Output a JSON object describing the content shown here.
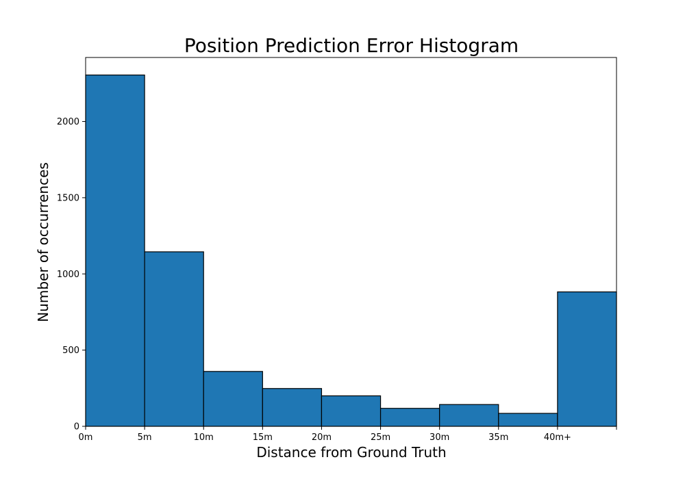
{
  "chart_data": {
    "type": "bar",
    "title": "Position Prediction Error Histogram",
    "xlabel": "Distance from Ground Truth",
    "ylabel": "Number of occurrences",
    "bin_edges": [
      0,
      5,
      10,
      15,
      20,
      25,
      30,
      35,
      40,
      45
    ],
    "x_tick_values": [
      0,
      5,
      10,
      15,
      20,
      25,
      30,
      35,
      40,
      45
    ],
    "x_tick_labels": [
      "0m",
      "5m",
      "10m",
      "15m",
      "20m",
      "25m",
      "30m",
      "35m",
      "40m+",
      ""
    ],
    "values": [
      2305,
      1145,
      360,
      248,
      200,
      118,
      143,
      85,
      882
    ],
    "xlim": [
      0,
      45
    ],
    "ylim": [
      0,
      2420
    ],
    "y_ticks": [
      0,
      500,
      1000,
      1500,
      2000
    ],
    "grid": false,
    "legend": "none",
    "colors": {
      "bar_fill": "#1f77b4",
      "bar_edge": "#000000"
    }
  }
}
